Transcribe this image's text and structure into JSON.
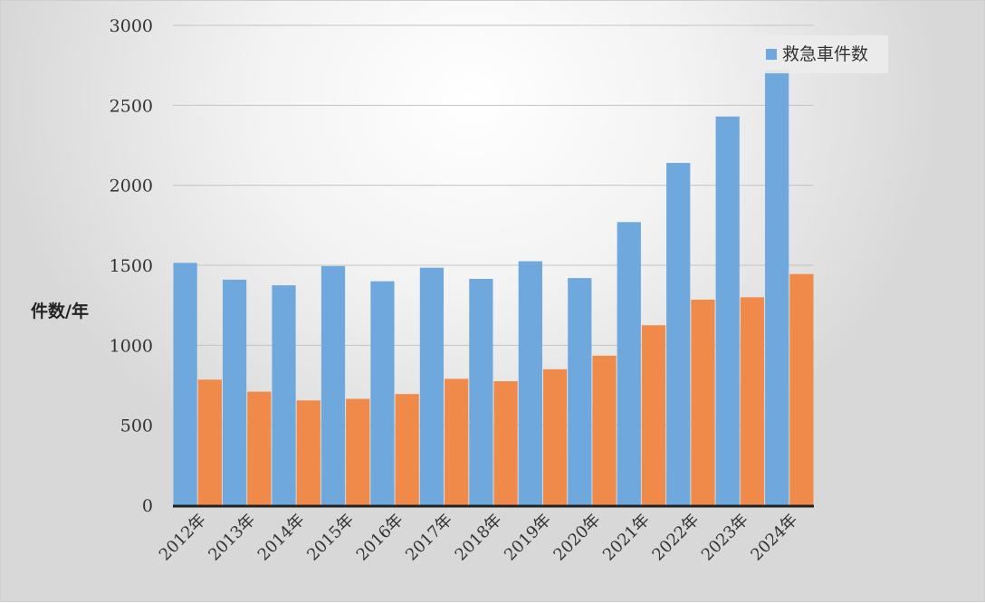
{
  "chart_data": {
    "type": "bar",
    "title": "",
    "xlabel": "",
    "ylabel": "件数/年",
    "ylim": [
      0,
      3000
    ],
    "yticks": [
      0,
      500,
      1000,
      1500,
      2000,
      2500,
      3000
    ],
    "grid": true,
    "legend_position": "top-right",
    "categories": [
      "2012年",
      "2013年",
      "2014年",
      "2015年",
      "2016年",
      "2017年",
      "2018年",
      "2019年",
      "2020年",
      "2021年",
      "2022年",
      "2023年",
      "2024年"
    ],
    "series": [
      {
        "name": "救急車件数",
        "color": "#6fa8dc",
        "values": [
          1515,
          1410,
          1375,
          1495,
          1400,
          1485,
          1415,
          1525,
          1420,
          1770,
          2140,
          2430,
          2720
        ]
      },
      {
        "name": "",
        "color": "#ef8a4a",
        "values": [
          785,
          710,
          655,
          665,
          695,
          790,
          775,
          850,
          935,
          1125,
          1285,
          1300,
          1445
        ]
      }
    ]
  }
}
